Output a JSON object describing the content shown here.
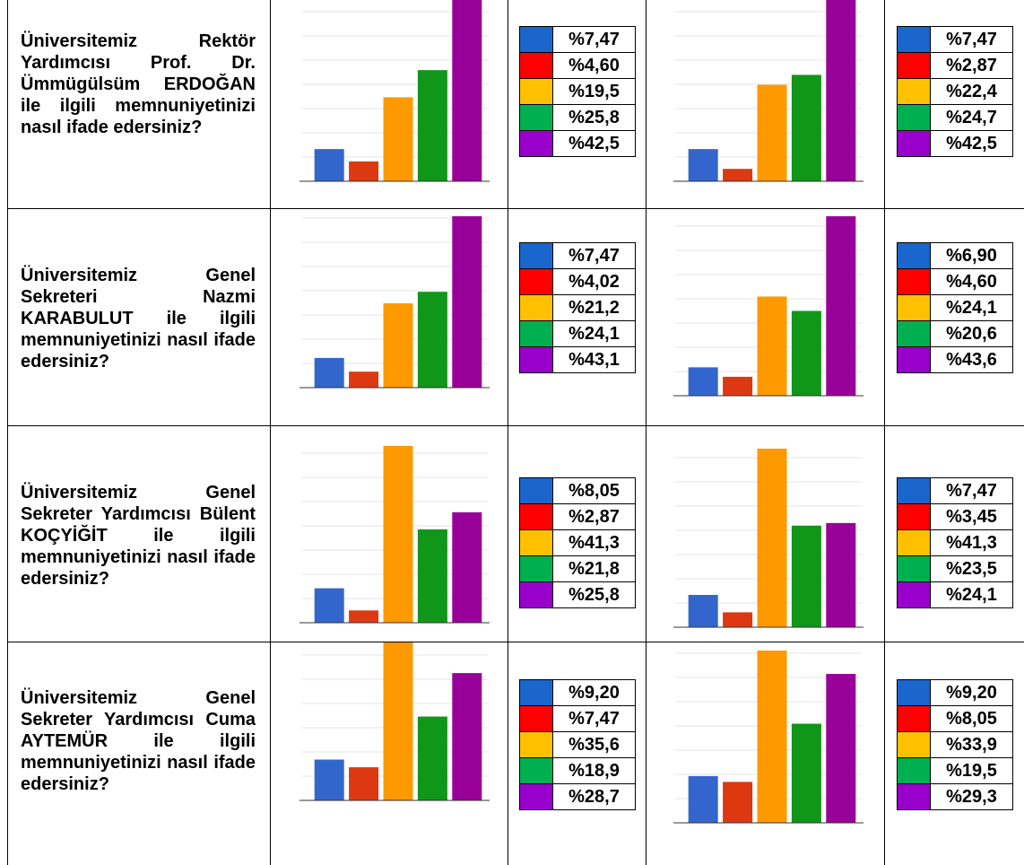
{
  "colors": {
    "s1": "#3366cc",
    "s2": "#dc3912",
    "s3": "#ff9900",
    "s4": "#109618",
    "s5": "#990099",
    "sw1": "#1a66cc",
    "sw2": "#ff0000",
    "sw3": "#ffc000",
    "sw4": "#00b050",
    "sw5": "#9900cc"
  },
  "rows": [
    {
      "question": "Üniversitemiz Rektör Yardımcısı Prof. Dr. Ümmügülsüm ERDOĞAN ile ilgili memnuniyetinizi nasıl ifade edersiniz?",
      "left_labels": [
        "%7,47",
        "%4,60",
        "%19,5",
        "%25,8",
        "%42,5"
      ],
      "right_labels": [
        "%7,47",
        "%2,87",
        "%22,4",
        "%24,7",
        "%42,5"
      ]
    },
    {
      "question": "Üniversitemiz Genel Sekreteri Nazmi KARABULUT ile ilgili memnuniyetinizi nasıl ifade edersiniz?",
      "left_labels": [
        "%7,47",
        "%4,02",
        "%21,2",
        "%24,1",
        "%43,1"
      ],
      "right_labels": [
        "%6,90",
        "%4,60",
        "%24,1",
        "%20,6",
        "%43,6"
      ]
    },
    {
      "question": "Üniversitemiz Genel Sekreter Yardımcısı Bülent KOÇYİĞİT ile ilgili memnuniyetinizi nasıl ifade edersiniz?",
      "left_labels": [
        "%8,05",
        "%2,87",
        "%41,3",
        "%21,8",
        "%25,8"
      ],
      "right_labels": [
        "%7,47",
        "%3,45",
        "%41,3",
        "%23,5",
        "%24,1"
      ]
    },
    {
      "question": "Üniversitemiz Genel Sekreter Yardımcısı Cuma AYTEMÜR ile ilgili memnuniyetinizi nasıl ifade edersiniz?",
      "left_labels": [
        "%9,20",
        "%7,47",
        "%35,6",
        "%18,9",
        "%28,7"
      ],
      "right_labels": [
        "%9,20",
        "%8,05",
        "%33,9",
        "%19,5",
        "%29,3"
      ]
    }
  ],
  "chart_data": [
    {
      "type": "bar",
      "values": [
        7.47,
        4.6,
        19.5,
        25.8,
        42.5
      ]
    },
    {
      "type": "bar",
      "values": [
        7.47,
        2.87,
        22.4,
        24.7,
        42.5
      ]
    },
    {
      "type": "bar",
      "values": [
        7.47,
        4.02,
        21.2,
        24.1,
        43.1
      ]
    },
    {
      "type": "bar",
      "values": [
        6.9,
        4.6,
        24.1,
        20.6,
        43.6
      ]
    },
    {
      "type": "bar",
      "values": [
        8.05,
        2.87,
        41.3,
        21.8,
        25.8
      ]
    },
    {
      "type": "bar",
      "values": [
        7.47,
        3.45,
        41.3,
        23.5,
        24.1
      ]
    },
    {
      "type": "bar",
      "values": [
        9.2,
        7.47,
        35.6,
        18.9,
        28.7
      ]
    },
    {
      "type": "bar",
      "values": [
        9.2,
        8.05,
        33.9,
        19.5,
        29.3
      ]
    }
  ]
}
